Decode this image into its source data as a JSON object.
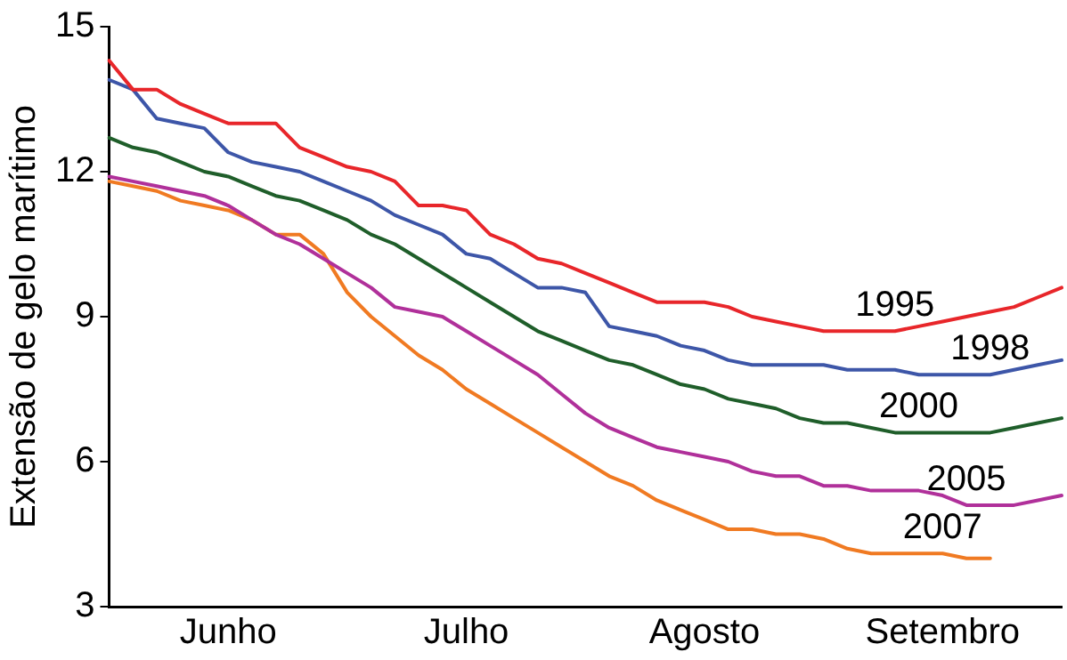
{
  "chart_data": {
    "type": "line",
    "ylabel": "Extensão de gelo marítimo",
    "categories": [
      null,
      null,
      null,
      null,
      null,
      "Junho",
      null,
      null,
      null,
      null,
      null,
      null,
      null,
      null,
      null,
      "Julho",
      null,
      null,
      null,
      null,
      null,
      null,
      null,
      null,
      null,
      "Agosto",
      null,
      null,
      null,
      null,
      null,
      null,
      null,
      null,
      null,
      "Setembro",
      null,
      null,
      null,
      null,
      null
    ],
    "ylim": [
      3,
      15
    ],
    "yticks": [
      3,
      6,
      9,
      12,
      15
    ],
    "grid": false,
    "legend": false,
    "marker": "none",
    "line_style": "solid",
    "series": [
      {
        "name": "1995",
        "color": "#e8262a",
        "values": [
          14.3,
          13.7,
          13.7,
          13.4,
          13.2,
          13.0,
          13.0,
          13.0,
          12.5,
          12.3,
          12.1,
          12.0,
          11.8,
          11.3,
          11.3,
          11.2,
          10.7,
          10.5,
          10.2,
          10.1,
          9.9,
          9.7,
          9.5,
          9.3,
          9.3,
          9.3,
          9.2,
          9.0,
          8.9,
          8.8,
          8.7,
          8.7,
          8.7,
          8.7,
          8.8,
          8.9,
          9.0,
          9.1,
          9.2,
          9.4,
          9.6
        ]
      },
      {
        "name": "1998",
        "color": "#3d56a8",
        "values": [
          13.9,
          13.7,
          13.1,
          13.0,
          12.9,
          12.4,
          12.2,
          12.1,
          12.0,
          11.8,
          11.6,
          11.4,
          11.1,
          10.9,
          10.7,
          10.3,
          10.2,
          9.9,
          9.6,
          9.6,
          9.5,
          8.8,
          8.7,
          8.6,
          8.4,
          8.3,
          8.1,
          8.0,
          8.0,
          8.0,
          8.0,
          7.9,
          7.9,
          7.9,
          7.8,
          7.8,
          7.8,
          7.8,
          7.9,
          8.0,
          8.1
        ]
      },
      {
        "name": "2000",
        "color": "#1f5e2a",
        "values": [
          12.7,
          12.5,
          12.4,
          12.2,
          12.0,
          11.9,
          11.7,
          11.5,
          11.4,
          11.2,
          11.0,
          10.7,
          10.5,
          10.2,
          9.9,
          9.6,
          9.3,
          9.0,
          8.7,
          8.5,
          8.3,
          8.1,
          8.0,
          7.8,
          7.6,
          7.5,
          7.3,
          7.2,
          7.1,
          6.9,
          6.8,
          6.8,
          6.7,
          6.6,
          6.6,
          6.6,
          6.6,
          6.6,
          6.7,
          6.8,
          6.9
        ]
      },
      {
        "name": "2005",
        "color": "#b0309a",
        "values": [
          11.9,
          11.8,
          11.7,
          11.6,
          11.5,
          11.3,
          11.0,
          10.7,
          10.5,
          10.2,
          9.9,
          9.6,
          9.2,
          9.1,
          9.0,
          8.7,
          8.4,
          8.1,
          7.8,
          7.4,
          7.0,
          6.7,
          6.5,
          6.3,
          6.2,
          6.1,
          6.0,
          5.8,
          5.7,
          5.7,
          5.5,
          5.5,
          5.4,
          5.4,
          5.4,
          5.3,
          5.1,
          5.1,
          5.1,
          5.2,
          5.3
        ]
      },
      {
        "name": "2007",
        "color": "#f07a22",
        "values": [
          11.8,
          11.7,
          11.6,
          11.4,
          11.3,
          11.2,
          11.0,
          10.7,
          10.7,
          10.3,
          9.5,
          9.0,
          8.6,
          8.2,
          7.9,
          7.5,
          7.2,
          6.9,
          6.6,
          6.3,
          6.0,
          5.7,
          5.5,
          5.2,
          5.0,
          4.8,
          4.6,
          4.6,
          4.5,
          4.5,
          4.4,
          4.2,
          4.1,
          4.1,
          4.1,
          4.1,
          4.0,
          4.0,
          null,
          null,
          null
        ]
      }
    ]
  }
}
